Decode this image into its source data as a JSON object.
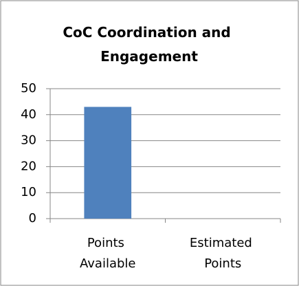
{
  "chart_data": {
    "type": "bar",
    "title": "CoC Coordination and Engagement",
    "categories": [
      "Points Available",
      "Estimated Points"
    ],
    "values": [
      43,
      0
    ],
    "color": "#4f81bd",
    "ylim": [
      0,
      50
    ],
    "yticks": [
      0,
      10,
      20,
      30,
      40,
      50
    ],
    "grid": true
  }
}
